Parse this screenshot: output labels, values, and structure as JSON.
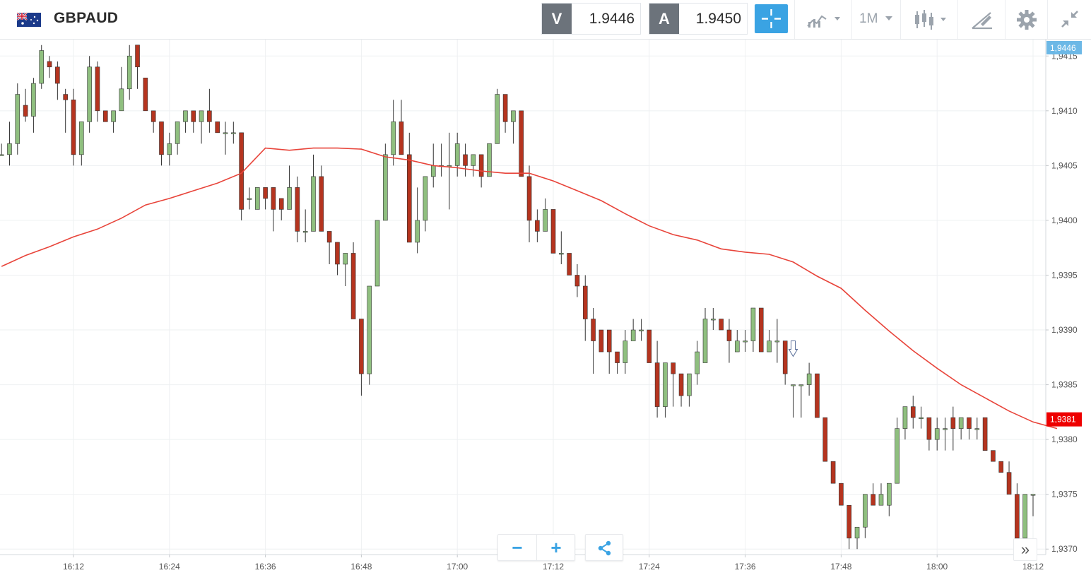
{
  "header": {
    "flag_icon": "gb-au-flag-icon",
    "symbol": "GBPAUD",
    "sell": {
      "letter": "V",
      "value": "1.9446"
    },
    "buy": {
      "letter": "A",
      "value": "1.9450"
    },
    "timeframe": "1M",
    "icons": [
      "crosshair-icon",
      "chart-type-icon",
      "candlestick-icon",
      "drawing-tool-icon",
      "gear-icon",
      "collapse-icon"
    ]
  },
  "chart_data": {
    "type": "candlestick",
    "symbol": "GBPAUD",
    "interval": "1 minute",
    "ylim": [
      1.93695,
      1.94165
    ],
    "y_ticks": [
      "1,9415",
      "1,9410",
      "1,9405",
      "1,9400",
      "1,9395",
      "1,9390",
      "1,9385",
      "1,9380",
      "1,9375",
      "1,9370"
    ],
    "x_ticks": [
      "16:12",
      "16:24",
      "16:36",
      "16:48",
      "17:00",
      "17:12",
      "17:24",
      "17:36",
      "17:48",
      "18:00",
      "18:12"
    ],
    "x_tick_minutes": [
      972,
      984,
      996,
      1008,
      1020,
      1032,
      1044,
      1056,
      1068,
      1080,
      1092
    ],
    "current_label": "1,9381",
    "ask_label": "1,9446",
    "up_color": "#8fbf7f",
    "down_color": "#b5341f",
    "ma_color": "#e8443a",
    "candles": [
      [
        963,
        1.9406,
        1.9407,
        1.9406,
        1.9406
      ],
      [
        964,
        1.9406,
        1.9409,
        1.9405,
        1.9407
      ],
      [
        965,
        1.9407,
        1.94125,
        1.9406,
        1.94115
      ],
      [
        966,
        1.94105,
        1.9412,
        1.9409,
        1.94095
      ],
      [
        967,
        1.94095,
        1.9413,
        1.9408,
        1.94125
      ],
      [
        968,
        1.94125,
        1.9416,
        1.9412,
        1.94155
      ],
      [
        969,
        1.94145,
        1.9415,
        1.9413,
        1.9414
      ],
      [
        970,
        1.9414,
        1.94145,
        1.9411,
        1.94125
      ],
      [
        971,
        1.94115,
        1.9412,
        1.9408,
        1.9411
      ],
      [
        972,
        1.9411,
        1.9412,
        1.9405,
        1.9406
      ],
      [
        973,
        1.9406,
        1.9409,
        1.9405,
        1.9409
      ],
      [
        974,
        1.9409,
        1.9415,
        1.9408,
        1.9414
      ],
      [
        975,
        1.9414,
        1.94145,
        1.9409,
        1.941
      ],
      [
        976,
        1.941,
        1.941,
        1.9409,
        1.9409
      ],
      [
        977,
        1.9409,
        1.941,
        1.9408,
        1.941
      ],
      [
        978,
        1.941,
        1.9414,
        1.941,
        1.9412
      ],
      [
        979,
        1.9412,
        1.9416,
        1.9411,
        1.9415
      ],
      [
        980,
        1.9416,
        1.9416,
        1.9412,
        1.9414
      ],
      [
        981,
        1.9413,
        1.9413,
        1.941,
        1.941
      ],
      [
        982,
        1.941,
        1.941,
        1.9408,
        1.9409
      ],
      [
        983,
        1.9409,
        1.9409,
        1.9405,
        1.9406
      ],
      [
        984,
        1.9406,
        1.9408,
        1.9405,
        1.9407
      ],
      [
        985,
        1.9407,
        1.9409,
        1.9406,
        1.9409
      ],
      [
        986,
        1.9409,
        1.941,
        1.9408,
        1.941
      ],
      [
        987,
        1.941,
        1.941,
        1.9408,
        1.9409
      ],
      [
        988,
        1.9409,
        1.941,
        1.9407,
        1.941
      ],
      [
        989,
        1.941,
        1.9412,
        1.9408,
        1.9409
      ],
      [
        990,
        1.9409,
        1.9409,
        1.9408,
        1.9408
      ],
      [
        991,
        1.9408,
        1.9409,
        1.9406,
        1.9408
      ],
      [
        992,
        1.9408,
        1.9409,
        1.9407,
        1.9408
      ],
      [
        993,
        1.9408,
        1.9408,
        1.94,
        1.9401
      ],
      [
        994,
        1.9402,
        1.9403,
        1.9401,
        1.9402
      ],
      [
        995,
        1.9401,
        1.9403,
        1.9401,
        1.9403
      ],
      [
        996,
        1.9403,
        1.9403,
        1.9401,
        1.9402
      ],
      [
        997,
        1.9403,
        1.9403,
        1.9399,
        1.9401
      ],
      [
        998,
        1.9402,
        1.9402,
        1.94,
        1.9401
      ],
      [
        999,
        1.9401,
        1.9405,
        1.9401,
        1.9403
      ],
      [
        1000,
        1.9403,
        1.9404,
        1.9398,
        1.9399
      ],
      [
        1001,
        1.9399,
        1.9401,
        1.9398,
        1.9399
      ],
      [
        1002,
        1.9399,
        1.9406,
        1.9399,
        1.9404
      ],
      [
        1003,
        1.9404,
        1.9405,
        1.9399,
        1.9399
      ],
      [
        1004,
        1.9399,
        1.9399,
        1.9396,
        1.9398
      ],
      [
        1005,
        1.9398,
        1.9398,
        1.9395,
        1.9396
      ],
      [
        1006,
        1.9396,
        1.9397,
        1.9394,
        1.9397
      ],
      [
        1007,
        1.9397,
        1.9398,
        1.9391,
        1.9391
      ],
      [
        1008,
        1.9391,
        1.9391,
        1.9384,
        1.9386
      ],
      [
        1009,
        1.9386,
        1.9394,
        1.9385,
        1.9394
      ],
      [
        1010,
        1.9394,
        1.94,
        1.9394,
        1.94
      ],
      [
        1011,
        1.94,
        1.9407,
        1.94,
        1.9406
      ],
      [
        1012,
        1.9406,
        1.9411,
        1.9405,
        1.9409
      ],
      [
        1013,
        1.9409,
        1.9411,
        1.9406,
        1.9406
      ],
      [
        1014,
        1.9406,
        1.9408,
        1.9398,
        1.9398
      ],
      [
        1015,
        1.9398,
        1.9403,
        1.9397,
        1.94
      ],
      [
        1016,
        1.94,
        1.9404,
        1.9399,
        1.9404
      ],
      [
        1017,
        1.9404,
        1.9407,
        1.9403,
        1.9405
      ],
      [
        1018,
        1.9405,
        1.9407,
        1.9404,
        1.9405
      ],
      [
        1019,
        1.9405,
        1.9408,
        1.9401,
        1.9405
      ],
      [
        1020,
        1.9405,
        1.9408,
        1.9404,
        1.9407
      ],
      [
        1021,
        1.9406,
        1.9407,
        1.9404,
        1.9405
      ],
      [
        1022,
        1.9405,
        1.9406,
        1.9404,
        1.9406
      ],
      [
        1023,
        1.9406,
        1.9406,
        1.9403,
        1.9404
      ],
      [
        1024,
        1.9404,
        1.9407,
        1.9404,
        1.9407
      ],
      [
        1025,
        1.9407,
        1.9412,
        1.9407,
        1.94115
      ],
      [
        1026,
        1.94115,
        1.94115,
        1.9408,
        1.9409
      ],
      [
        1027,
        1.9409,
        1.941,
        1.9407,
        1.941
      ],
      [
        1028,
        1.941,
        1.941,
        1.9404,
        1.9404
      ],
      [
        1029,
        1.9404,
        1.9405,
        1.9398,
        1.94
      ],
      [
        1030,
        1.94,
        1.9401,
        1.9398,
        1.9399
      ],
      [
        1031,
        1.9399,
        1.9402,
        1.9399,
        1.9401
      ],
      [
        1032,
        1.9401,
        1.9401,
        1.9397,
        1.9397
      ],
      [
        1033,
        1.9397,
        1.9399,
        1.9396,
        1.9397
      ],
      [
        1034,
        1.9397,
        1.9397,
        1.9395,
        1.9395
      ],
      [
        1035,
        1.9395,
        1.9396,
        1.9393,
        1.9394
      ],
      [
        1036,
        1.9394,
        1.9395,
        1.9389,
        1.9391
      ],
      [
        1037,
        1.9391,
        1.9392,
        1.9386,
        1.9389
      ],
      [
        1038,
        1.939,
        1.939,
        1.9388,
        1.9388
      ],
      [
        1039,
        1.939,
        1.939,
        1.9386,
        1.9388
      ],
      [
        1040,
        1.9388,
        1.9388,
        1.9386,
        1.9387
      ],
      [
        1041,
        1.9387,
        1.939,
        1.9386,
        1.9389
      ],
      [
        1042,
        1.9389,
        1.9391,
        1.9389,
        1.939
      ],
      [
        1043,
        1.939,
        1.9391,
        1.9389,
        1.939
      ],
      [
        1044,
        1.939,
        1.939,
        1.9387,
        1.9387
      ],
      [
        1045,
        1.9387,
        1.9389,
        1.9382,
        1.9383
      ],
      [
        1046,
        1.9383,
        1.9387,
        1.9382,
        1.9387
      ],
      [
        1047,
        1.9387,
        1.9387,
        1.9383,
        1.9386
      ],
      [
        1048,
        1.9386,
        1.9386,
        1.9383,
        1.9384
      ],
      [
        1049,
        1.9384,
        1.9386,
        1.9383,
        1.9386
      ],
      [
        1050,
        1.9386,
        1.9389,
        1.9385,
        1.9388
      ],
      [
        1051,
        1.9387,
        1.9392,
        1.9387,
        1.9391
      ],
      [
        1052,
        1.9391,
        1.9392,
        1.939,
        1.9391
      ],
      [
        1053,
        1.9391,
        1.9391,
        1.939,
        1.939
      ],
      [
        1054,
        1.939,
        1.9391,
        1.9387,
        1.9389
      ],
      [
        1055,
        1.9388,
        1.939,
        1.9388,
        1.9389
      ],
      [
        1056,
        1.9389,
        1.939,
        1.9388,
        1.9389
      ],
      [
        1057,
        1.9389,
        1.9392,
        1.9388,
        1.9392
      ],
      [
        1058,
        1.9392,
        1.9392,
        1.9388,
        1.9388
      ],
      [
        1059,
        1.9388,
        1.939,
        1.9388,
        1.9389
      ],
      [
        1060,
        1.9389,
        1.9391,
        1.9387,
        1.9389
      ],
      [
        1061,
        1.9389,
        1.9389,
        1.9385,
        1.9386
      ],
      [
        1062,
        1.9385,
        1.9385,
        1.9382,
        1.9385
      ],
      [
        1063,
        1.9385,
        1.9385,
        1.9382,
        1.9385
      ],
      [
        1064,
        1.9385,
        1.9387,
        1.9384,
        1.9386
      ],
      [
        1065,
        1.9386,
        1.9386,
        1.9382,
        1.9382
      ],
      [
        1066,
        1.9382,
        1.9382,
        1.9378,
        1.9378
      ],
      [
        1067,
        1.9378,
        1.9378,
        1.9376,
        1.9376
      ],
      [
        1068,
        1.9376,
        1.9376,
        1.9374,
        1.9374
      ],
      [
        1069,
        1.9374,
        1.9374,
        1.937,
        1.9371
      ],
      [
        1070,
        1.9371,
        1.9372,
        1.937,
        1.9372
      ],
      [
        1071,
        1.9372,
        1.9375,
        1.9371,
        1.9375
      ],
      [
        1072,
        1.9375,
        1.9376,
        1.9374,
        1.9374
      ],
      [
        1073,
        1.9374,
        1.9376,
        1.9374,
        1.9375
      ],
      [
        1074,
        1.9374,
        1.9376,
        1.9373,
        1.9376
      ],
      [
        1075,
        1.9376,
        1.9382,
        1.9376,
        1.9381
      ],
      [
        1076,
        1.9381,
        1.9383,
        1.938,
        1.9383
      ],
      [
        1077,
        1.9383,
        1.9384,
        1.9381,
        1.9382
      ],
      [
        1078,
        1.9382,
        1.9383,
        1.9381,
        1.9382
      ],
      [
        1079,
        1.9382,
        1.9382,
        1.9379,
        1.938
      ],
      [
        1080,
        1.938,
        1.9382,
        1.9379,
        1.9381
      ],
      [
        1081,
        1.9381,
        1.9382,
        1.9379,
        1.9381
      ],
      [
        1082,
        1.9382,
        1.9383,
        1.9379,
        1.9381
      ],
      [
        1083,
        1.9381,
        1.9382,
        1.938,
        1.9382
      ],
      [
        1084,
        1.9382,
        1.9382,
        1.938,
        1.9381
      ],
      [
        1085,
        1.9381,
        1.9382,
        1.938,
        1.9381
      ],
      [
        1086,
        1.9382,
        1.9382,
        1.9379,
        1.9379
      ],
      [
        1087,
        1.9379,
        1.9379,
        1.9378,
        1.9378
      ],
      [
        1088,
        1.9378,
        1.9378,
        1.9377,
        1.9377
      ],
      [
        1089,
        1.9377,
        1.9378,
        1.9375,
        1.9375
      ],
      [
        1090,
        1.9375,
        1.9376,
        1.937,
        1.9371
      ],
      [
        1091,
        1.9371,
        1.9375,
        1.937,
        1.9375
      ],
      [
        1092,
        1.9375,
        1.9375,
        1.9373,
        1.9375
      ]
    ],
    "ma": [
      [
        963,
        1.93958
      ],
      [
        966,
        1.93968
      ],
      [
        969,
        1.93976
      ],
      [
        972,
        1.93985
      ],
      [
        975,
        1.93992
      ],
      [
        978,
        1.94002
      ],
      [
        981,
        1.94014
      ],
      [
        984,
        1.9402
      ],
      [
        987,
        1.94027
      ],
      [
        990,
        1.94034
      ],
      [
        993,
        1.94043
      ],
      [
        996,
        1.94066
      ],
      [
        999,
        1.94064
      ],
      [
        1002,
        1.94066
      ],
      [
        1005,
        1.94066
      ],
      [
        1008,
        1.94065
      ],
      [
        1011,
        1.94058
      ],
      [
        1014,
        1.94055
      ],
      [
        1017,
        1.9405
      ],
      [
        1020,
        1.94048
      ],
      [
        1023,
        1.94045
      ],
      [
        1026,
        1.94043
      ],
      [
        1029,
        1.94043
      ],
      [
        1032,
        1.94036
      ],
      [
        1035,
        1.94027
      ],
      [
        1038,
        1.94018
      ],
      [
        1041,
        1.94006
      ],
      [
        1044,
        1.93995
      ],
      [
        1047,
        1.93987
      ],
      [
        1050,
        1.93982
      ],
      [
        1053,
        1.93974
      ],
      [
        1056,
        1.93971
      ],
      [
        1059,
        1.93969
      ],
      [
        1062,
        1.93962
      ],
      [
        1065,
        1.93949
      ],
      [
        1068,
        1.93938
      ],
      [
        1071,
        1.93918
      ],
      [
        1074,
        1.93899
      ],
      [
        1077,
        1.93881
      ],
      [
        1080,
        1.93865
      ],
      [
        1083,
        1.9385
      ],
      [
        1086,
        1.93838
      ],
      [
        1089,
        1.93826
      ],
      [
        1092,
        1.93816
      ],
      [
        1095,
        1.9381
      ]
    ],
    "grid": true
  },
  "controls": {
    "zoom_out": "−",
    "zoom_in": "+",
    "share_icon": "share-icon",
    "scroll_right": "»"
  }
}
